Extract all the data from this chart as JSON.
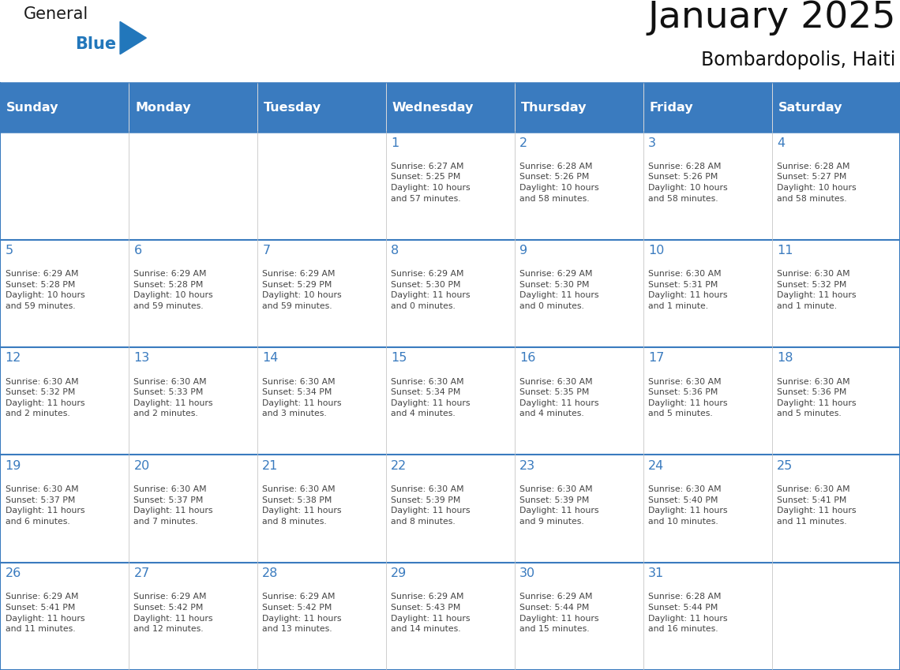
{
  "title": "January 2025",
  "subtitle": "Bombardopolis, Haiti",
  "header_bg_color": "#3a7bbf",
  "header_text_color": "#ffffff",
  "cell_bg_color": "#ffffff",
  "border_color": "#3a7bbf",
  "row_line_color": "#3a7bbf",
  "col_line_color": "#cccccc",
  "text_color": "#444444",
  "day_number_color": "#3a7bbf",
  "days_of_week": [
    "Sunday",
    "Monday",
    "Tuesday",
    "Wednesday",
    "Thursday",
    "Friday",
    "Saturday"
  ],
  "logo_text1": "General",
  "logo_text2": "Blue",
  "logo_color": "#2277bb",
  "calendar_data": [
    [
      {
        "day": 0,
        "text": ""
      },
      {
        "day": 0,
        "text": ""
      },
      {
        "day": 0,
        "text": ""
      },
      {
        "day": 1,
        "text": "Sunrise: 6:27 AM\nSunset: 5:25 PM\nDaylight: 10 hours\nand 57 minutes."
      },
      {
        "day": 2,
        "text": "Sunrise: 6:28 AM\nSunset: 5:26 PM\nDaylight: 10 hours\nand 58 minutes."
      },
      {
        "day": 3,
        "text": "Sunrise: 6:28 AM\nSunset: 5:26 PM\nDaylight: 10 hours\nand 58 minutes."
      },
      {
        "day": 4,
        "text": "Sunrise: 6:28 AM\nSunset: 5:27 PM\nDaylight: 10 hours\nand 58 minutes."
      }
    ],
    [
      {
        "day": 5,
        "text": "Sunrise: 6:29 AM\nSunset: 5:28 PM\nDaylight: 10 hours\nand 59 minutes."
      },
      {
        "day": 6,
        "text": "Sunrise: 6:29 AM\nSunset: 5:28 PM\nDaylight: 10 hours\nand 59 minutes."
      },
      {
        "day": 7,
        "text": "Sunrise: 6:29 AM\nSunset: 5:29 PM\nDaylight: 10 hours\nand 59 minutes."
      },
      {
        "day": 8,
        "text": "Sunrise: 6:29 AM\nSunset: 5:30 PM\nDaylight: 11 hours\nand 0 minutes."
      },
      {
        "day": 9,
        "text": "Sunrise: 6:29 AM\nSunset: 5:30 PM\nDaylight: 11 hours\nand 0 minutes."
      },
      {
        "day": 10,
        "text": "Sunrise: 6:30 AM\nSunset: 5:31 PM\nDaylight: 11 hours\nand 1 minute."
      },
      {
        "day": 11,
        "text": "Sunrise: 6:30 AM\nSunset: 5:32 PM\nDaylight: 11 hours\nand 1 minute."
      }
    ],
    [
      {
        "day": 12,
        "text": "Sunrise: 6:30 AM\nSunset: 5:32 PM\nDaylight: 11 hours\nand 2 minutes."
      },
      {
        "day": 13,
        "text": "Sunrise: 6:30 AM\nSunset: 5:33 PM\nDaylight: 11 hours\nand 2 minutes."
      },
      {
        "day": 14,
        "text": "Sunrise: 6:30 AM\nSunset: 5:34 PM\nDaylight: 11 hours\nand 3 minutes."
      },
      {
        "day": 15,
        "text": "Sunrise: 6:30 AM\nSunset: 5:34 PM\nDaylight: 11 hours\nand 4 minutes."
      },
      {
        "day": 16,
        "text": "Sunrise: 6:30 AM\nSunset: 5:35 PM\nDaylight: 11 hours\nand 4 minutes."
      },
      {
        "day": 17,
        "text": "Sunrise: 6:30 AM\nSunset: 5:36 PM\nDaylight: 11 hours\nand 5 minutes."
      },
      {
        "day": 18,
        "text": "Sunrise: 6:30 AM\nSunset: 5:36 PM\nDaylight: 11 hours\nand 5 minutes."
      }
    ],
    [
      {
        "day": 19,
        "text": "Sunrise: 6:30 AM\nSunset: 5:37 PM\nDaylight: 11 hours\nand 6 minutes."
      },
      {
        "day": 20,
        "text": "Sunrise: 6:30 AM\nSunset: 5:37 PM\nDaylight: 11 hours\nand 7 minutes."
      },
      {
        "day": 21,
        "text": "Sunrise: 6:30 AM\nSunset: 5:38 PM\nDaylight: 11 hours\nand 8 minutes."
      },
      {
        "day": 22,
        "text": "Sunrise: 6:30 AM\nSunset: 5:39 PM\nDaylight: 11 hours\nand 8 minutes."
      },
      {
        "day": 23,
        "text": "Sunrise: 6:30 AM\nSunset: 5:39 PM\nDaylight: 11 hours\nand 9 minutes."
      },
      {
        "day": 24,
        "text": "Sunrise: 6:30 AM\nSunset: 5:40 PM\nDaylight: 11 hours\nand 10 minutes."
      },
      {
        "day": 25,
        "text": "Sunrise: 6:30 AM\nSunset: 5:41 PM\nDaylight: 11 hours\nand 11 minutes."
      }
    ],
    [
      {
        "day": 26,
        "text": "Sunrise: 6:29 AM\nSunset: 5:41 PM\nDaylight: 11 hours\nand 11 minutes."
      },
      {
        "day": 27,
        "text": "Sunrise: 6:29 AM\nSunset: 5:42 PM\nDaylight: 11 hours\nand 12 minutes."
      },
      {
        "day": 28,
        "text": "Sunrise: 6:29 AM\nSunset: 5:42 PM\nDaylight: 11 hours\nand 13 minutes."
      },
      {
        "day": 29,
        "text": "Sunrise: 6:29 AM\nSunset: 5:43 PM\nDaylight: 11 hours\nand 14 minutes."
      },
      {
        "day": 30,
        "text": "Sunrise: 6:29 AM\nSunset: 5:44 PM\nDaylight: 11 hours\nand 15 minutes."
      },
      {
        "day": 31,
        "text": "Sunrise: 6:28 AM\nSunset: 5:44 PM\nDaylight: 11 hours\nand 16 minutes."
      },
      {
        "day": 0,
        "text": ""
      }
    ]
  ]
}
